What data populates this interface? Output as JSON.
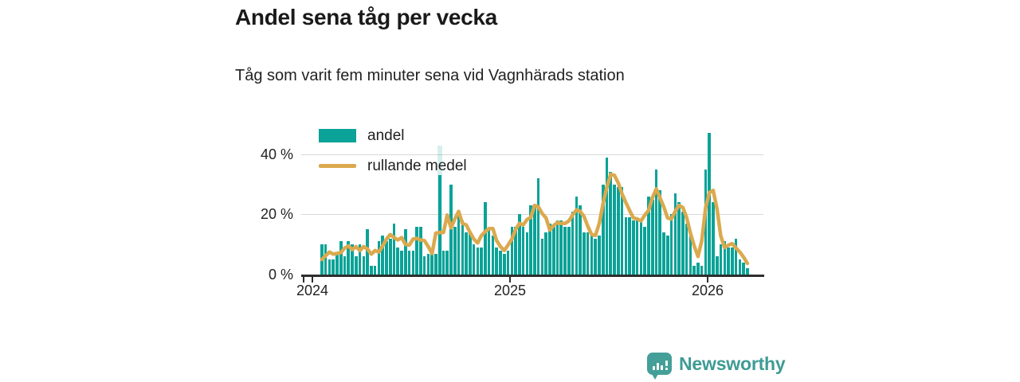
{
  "header": {
    "title": "Andel sena tåg per vecka",
    "subtitle": "Tåg som varit fem minuter sena vid Vagnhärads station"
  },
  "legend": {
    "bar_label": "andel",
    "line_label": "rullande medel"
  },
  "colors": {
    "bar": "#0ba297",
    "bar_highlight_band": "rgba(11,162,151,0.17)",
    "line": "#dba94e",
    "axis": "#2e2e2e",
    "gridline": "#d9d9d9",
    "brand": "#3e9b95"
  },
  "footer": {
    "brand": "Newsworthy"
  },
  "chart_data": {
    "type": "bar",
    "title": "Andel sena tåg per vecka",
    "subtitle": "Tåg som varit fem minuter sena vid Vagnhärads station",
    "unit": "%",
    "frequency": "weekly",
    "weeks_start": "2024-W03",
    "weeks_end": "2026-W11",
    "x_tick_labels": [
      "2024",
      "2025",
      "2026"
    ],
    "x_tick_week_index": [
      -2.5,
      49.5,
      101.5
    ],
    "y_ticks": [
      0,
      20,
      40
    ],
    "y_tick_labels": [
      "0 %",
      "20 %",
      "40 %"
    ],
    "ylim": [
      0,
      43
    ],
    "grid": "horizontal",
    "legend_position": "top-left-inside",
    "highlighted_index": 31,
    "series": [
      {
        "name": "andel",
        "type": "bar",
        "color": "#0ba297",
        "values": [
          10,
          10,
          5,
          5,
          7,
          11,
          6,
          11,
          10,
          6,
          10,
          6,
          15,
          3,
          3,
          11,
          13,
          11,
          12,
          17,
          9,
          8,
          15,
          8,
          8,
          16,
          16,
          6,
          7,
          8,
          7,
          33,
          8,
          8,
          30,
          16,
          20,
          18,
          14,
          14,
          10,
          9,
          9,
          24,
          15,
          13,
          9,
          8,
          7,
          8,
          16,
          16,
          20,
          16,
          14,
          23,
          23,
          32,
          12,
          14,
          17,
          16,
          18,
          18,
          16,
          16,
          21,
          26,
          23,
          14,
          14,
          13,
          12,
          13,
          30,
          39,
          34,
          30,
          29,
          29,
          19,
          19,
          18,
          19,
          18,
          16,
          26,
          25,
          35,
          28,
          14,
          13,
          20,
          27,
          24,
          21,
          17,
          14,
          3,
          4,
          3,
          35,
          47,
          24,
          6,
          10,
          11,
          9,
          9,
          12,
          5,
          4,
          2
        ]
      },
      {
        "name": "rullande medel",
        "type": "line",
        "color": "#dba94e",
        "window_weeks": 4,
        "values": [
          5.0,
          6.3,
          7.5,
          6.8,
          7.0,
          7.3,
          8.8,
          9.5,
          8.3,
          9.3,
          8.0,
          9.3,
          8.5,
          6.8,
          8.0,
          7.5,
          9.5,
          11.8,
          13.3,
          12.3,
          11.5,
          12.3,
          10.0,
          9.8,
          11.8,
          12.0,
          11.5,
          11.3,
          9.3,
          7.0,
          13.8,
          14.0,
          14.0,
          19.8,
          15.5,
          18.5,
          21.0,
          17.0,
          16.5,
          14.0,
          11.8,
          10.5,
          13.0,
          14.3,
          15.3,
          15.3,
          11.3,
          9.3,
          8.0,
          9.8,
          11.8,
          15.0,
          17.0,
          16.5,
          18.3,
          19.0,
          23.0,
          22.5,
          20.3,
          18.8,
          14.8,
          16.3,
          17.3,
          17.0,
          17.0,
          17.8,
          19.8,
          21.5,
          21.0,
          19.3,
          16.0,
          13.3,
          13.0,
          17.0,
          23.5,
          29.0,
          33.3,
          33.0,
          30.5,
          26.8,
          24.0,
          21.3,
          18.8,
          18.5,
          17.8,
          19.8,
          21.3,
          25.5,
          28.5,
          25.5,
          22.5,
          18.8,
          18.5,
          21.0,
          23.0,
          22.3,
          19.0,
          13.8,
          9.5,
          6.0,
          11.3,
          22.3,
          27.3,
          28.0,
          21.8,
          12.8,
          9.0,
          9.8,
          10.3,
          8.8,
          7.5,
          5.8,
          3.7
        ]
      }
    ]
  }
}
